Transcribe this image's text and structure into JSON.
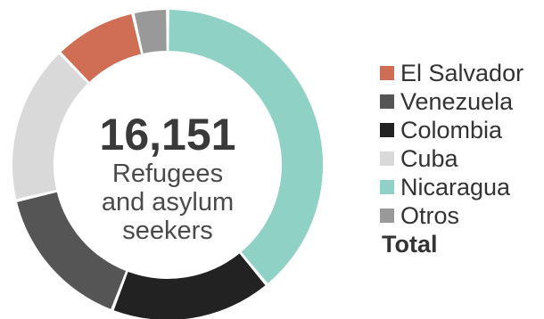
{
  "chart_data": {
    "type": "pie",
    "categories": [
      "Nicaragua",
      "Colombia",
      "Venezuela",
      "Cuba",
      "El Salvador",
      "Otros"
    ],
    "values": [
      6299,
      2714,
      2503,
      2665,
      1389,
      581
    ],
    "colors": [
      "#8fd1c5",
      "#222222",
      "#555555",
      "#d9d9d9",
      "#cf6e55",
      "#999999"
    ],
    "total": "16,151",
    "center_label_lines": [
      "Refugees",
      "and asylum",
      "seekers"
    ]
  },
  "legend": {
    "items": [
      {
        "label": "El Salvador",
        "color": "#cf6e55"
      },
      {
        "label": "Venezuela",
        "color": "#555555"
      },
      {
        "label": "Colombia",
        "color": "#222222"
      },
      {
        "label": "Cuba",
        "color": "#d9d9d9"
      },
      {
        "label": "Nicaragua",
        "color": "#8fd1c5"
      },
      {
        "label": "Otros",
        "color": "#999999"
      }
    ],
    "total_label": "Total"
  }
}
